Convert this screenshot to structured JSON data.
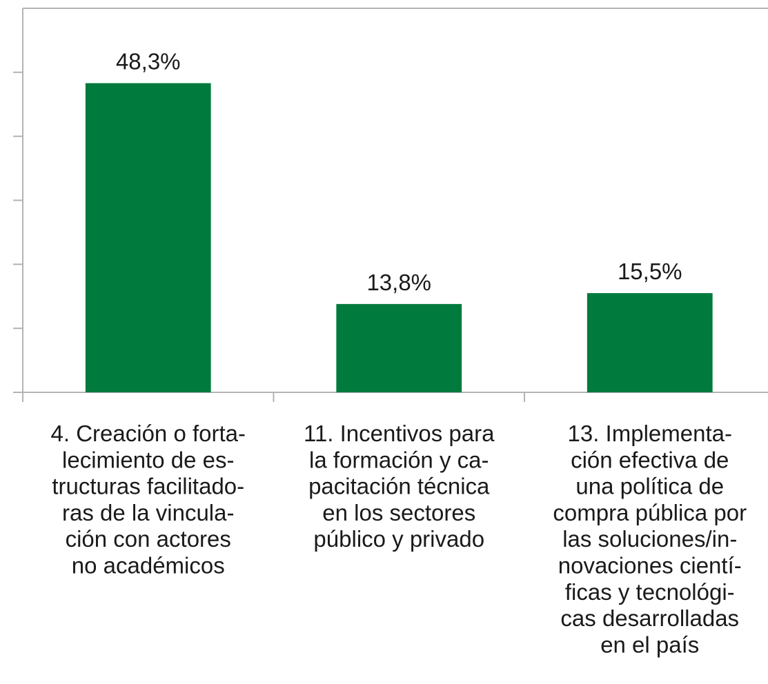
{
  "chart_data": {
    "type": "bar",
    "categories": [
      [
        "4. Creación o forta-",
        "lecimiento de es-",
        "tructuras facilitado-",
        "ras de la vincula-",
        "ción con actores",
        "no académicos"
      ],
      [
        "11. Incentivos para",
        "la formación y ca-",
        "pacitación técnica",
        "en los sectores",
        "público y privado"
      ],
      [
        "13. Implementa-",
        "ción efectiva de",
        "una política de",
        "compra pública por",
        "las soluciones/in-",
        "novaciones cientí-",
        "ficas y tecnológi-",
        "cas desarrolladas",
        "en el país"
      ]
    ],
    "values": [
      48.3,
      13.8,
      15.5
    ],
    "value_labels": [
      "48,3%",
      "13,8%",
      "15,5%"
    ],
    "color": "#007a3d",
    "ylim": [
      0,
      60
    ],
    "yticks": [
      0,
      10,
      20,
      30,
      40,
      50,
      60
    ]
  }
}
